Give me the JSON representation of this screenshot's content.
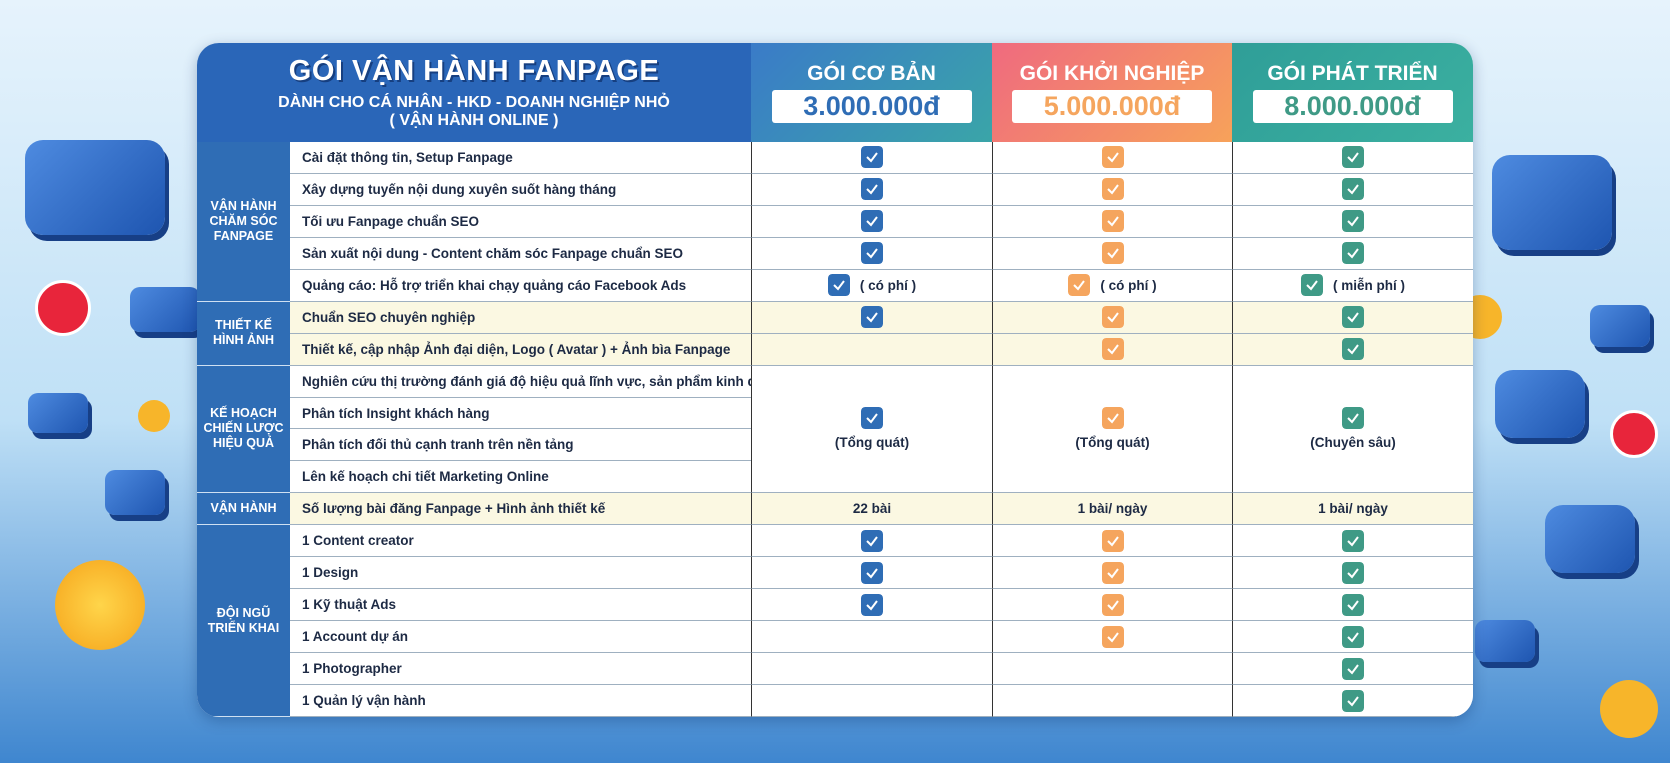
{
  "header": {
    "title": "GÓI VẬN HÀNH FANPAGE",
    "subtitle": "DÀNH CHO CÁ NHÂN - HKD - DOANH NGHIỆP NHỎ",
    "note": "( VẬN HÀNH ONLINE )"
  },
  "plans": [
    {
      "name": "GÓI CƠ BẢN",
      "price": "3.000.000đ",
      "color": "#2f6db5"
    },
    {
      "name": "GÓI KHỞI NGHIỆP",
      "price": "5.000.000đ",
      "color": "#f5a55e"
    },
    {
      "name": "GÓI PHÁT TRIỂN",
      "price": "8.000.000đ",
      "color": "#3f9a86"
    }
  ],
  "groups": [
    {
      "label": [
        "VẬN HÀNH",
        "CHĂM SÓC",
        "FANPAGE"
      ],
      "rows": [
        {
          "feature": "Cài đặt thông tin, Setup Fanpage",
          "cells": [
            {
              "check": true
            },
            {
              "check": true
            },
            {
              "check": true
            }
          ]
        },
        {
          "feature": "Xây dựng tuyến nội dung xuyên suốt hàng tháng",
          "cells": [
            {
              "check": true
            },
            {
              "check": true
            },
            {
              "check": true
            }
          ]
        },
        {
          "feature": "Tối ưu Fanpage chuẩn SEO",
          "cells": [
            {
              "check": true
            },
            {
              "check": true
            },
            {
              "check": true
            }
          ]
        },
        {
          "feature": "Sản xuất nội dung - Content chăm sóc Fanpage chuẩn SEO",
          "cells": [
            {
              "check": true
            },
            {
              "check": true
            },
            {
              "check": true
            }
          ]
        },
        {
          "feature": "Quảng cáo: Hỗ trợ triển khai chạy quảng cáo Facebook Ads",
          "cells": [
            {
              "check": true,
              "note": "( có phí )"
            },
            {
              "check": true,
              "note": "( có phí )"
            },
            {
              "check": true,
              "note": "( miễn phí )"
            }
          ]
        }
      ]
    },
    {
      "label": [
        "THIẾT KẾ",
        "HÌNH ẢNH"
      ],
      "highlight": true,
      "rows": [
        {
          "feature": "Chuẩn SEO chuyên nghiệp",
          "cells": [
            {
              "check": true
            },
            {
              "check": true
            },
            {
              "check": true
            }
          ]
        },
        {
          "feature": "Thiết kế, cập nhập Ảnh đại diện, Logo ( Avatar ) + Ảnh bìa Fanpage",
          "cells": [
            {
              "check": false
            },
            {
              "check": true
            },
            {
              "check": true
            }
          ]
        }
      ]
    },
    {
      "label": [
        "KẾ HOẠCH",
        "CHIẾN LƯỢC",
        "HIỆU QUẢ"
      ],
      "rows": [
        {
          "feature": "Nghiên cứu thị trường đánh giá độ hiệu quả lĩnh vực, sản phẩm kinh doanh"
        },
        {
          "feature": "Phân tích Insight khách hàng"
        },
        {
          "feature": "Phân tích đối thủ cạnh tranh trên nền tảng"
        },
        {
          "feature": "Lên kế hoạch chi tiết Marketing Online"
        }
      ],
      "merged": [
        {
          "check": true,
          "note": "(Tổng quát)"
        },
        {
          "check": true,
          "note": "(Tổng quát)"
        },
        {
          "check": true,
          "note": "(Chuyên sâu)"
        }
      ]
    },
    {
      "label": [
        "VẬN HÀNH"
      ],
      "highlight": true,
      "rows": [
        {
          "feature": "Số lượng bài đăng Fanpage + Hình ảnh thiết kế",
          "cells": [
            {
              "text": "22 bài"
            },
            {
              "text": "1 bài/ ngày"
            },
            {
              "text": "1 bài/ ngày"
            }
          ]
        }
      ]
    },
    {
      "label": [
        "ĐỘI NGŨ",
        "TRIỂN KHAI"
      ],
      "rows": [
        {
          "feature": "1 Content creator",
          "cells": [
            {
              "check": true
            },
            {
              "check": true
            },
            {
              "check": true
            }
          ]
        },
        {
          "feature": "1 Design",
          "cells": [
            {
              "check": true
            },
            {
              "check": true
            },
            {
              "check": true
            }
          ]
        },
        {
          "feature": "1 Kỹ thuật Ads",
          "cells": [
            {
              "check": true
            },
            {
              "check": true
            },
            {
              "check": true
            }
          ]
        },
        {
          "feature": "1 Account dự án",
          "cells": [
            {
              "check": false
            },
            {
              "check": true
            },
            {
              "check": true
            }
          ]
        },
        {
          "feature": "1 Photographer",
          "cells": [
            {
              "check": false
            },
            {
              "check": false
            },
            {
              "check": true
            }
          ]
        },
        {
          "feature": "1 Quản lý vận hành",
          "cells": [
            {
              "check": false
            },
            {
              "check": false
            },
            {
              "check": true
            }
          ]
        }
      ]
    }
  ]
}
